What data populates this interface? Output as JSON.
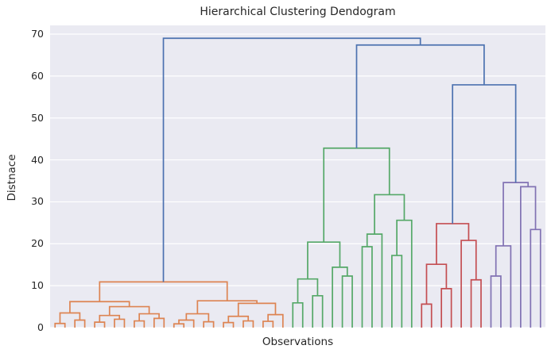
{
  "colors": {
    "figure_background": "#ffffff",
    "axes_background": "#eaeaf2",
    "grid": "#ffffff",
    "text": "#262626",
    "blue": "#4c72b0",
    "orange": "#dd8452",
    "green": "#55a868",
    "red": "#c44e52",
    "purple": "#8172b3"
  },
  "chart_data": {
    "type": "dendrogram",
    "title": "Hierarchical Clustering Dendogram",
    "xlabel": "Observations",
    "ylabel": "Distnace",
    "ylim": [
      0,
      72
    ],
    "yticks": [
      0,
      10,
      20,
      30,
      40,
      50,
      60,
      70
    ],
    "grid": "horizontal-white-lines",
    "legend": "none",
    "x_tick_labels": "none",
    "leaf_count": 50,
    "link_color_above_threshold": "#4c72b0",
    "top_link_heights": [
      69.0,
      67.4,
      57.9
    ],
    "clusters": [
      {
        "name": "cluster-orange",
        "color": "#dd8452",
        "leaf_count": 24,
        "root_height": 10.9
      },
      {
        "name": "cluster-green",
        "color": "#55a868",
        "leaf_count": 13,
        "root_height": 42.8
      },
      {
        "name": "cluster-red",
        "color": "#c44e52",
        "leaf_count": 7,
        "root_height": 24.8
      },
      {
        "name": "cluster-purple",
        "color": "#8172b3",
        "leaf_count": 6,
        "root_height": 34.6
      }
    ],
    "tree_format": "node = [merge_height, child_a, child_b, optional_color]; leaf = 0; colors inherited by descendants",
    "tree": [
      69.0,
      [
        10.9,
        [
          6.2,
          [
            3.5,
            [
              1.0,
              0,
              0
            ],
            [
              1.8,
              0,
              0
            ]
          ],
          [
            5.0,
            [
              2.9,
              [
                1.3,
                0,
                0
              ],
              [
                2.0,
                0,
                0
              ]
            ],
            [
              3.3,
              [
                1.6,
                0,
                0
              ],
              [
                2.2,
                0,
                0
              ]
            ]
          ]
        ],
        [
          6.4,
          [
            3.3,
            [
              1.8,
              [
                0.9,
                0,
                0
              ],
              0
            ],
            [
              1.4,
              0,
              0
            ]
          ],
          [
            5.8,
            [
              2.7,
              [
                1.2,
                0,
                0
              ],
              [
                1.6,
                0,
                0
              ]
            ],
            [
              3.1,
              [
                1.5,
                0,
                0
              ],
              0
            ]
          ]
        ],
        "#dd8452"
      ],
      [
        67.4,
        [
          42.8,
          [
            20.4,
            [
              11.6,
              [
                5.9,
                0,
                0
              ],
              [
                7.6,
                0,
                0
              ]
            ],
            [
              14.4,
              0,
              [
                12.3,
                0,
                0
              ]
            ]
          ],
          [
            31.7,
            [
              22.3,
              [
                19.3,
                0,
                0
              ],
              0
            ],
            [
              25.6,
              [
                17.2,
                0,
                0
              ],
              0
            ]
          ],
          "#55a868"
        ],
        [
          57.9,
          [
            24.8,
            [
              15.1,
              [
                5.6,
                0,
                0
              ],
              [
                9.3,
                0,
                0
              ]
            ],
            [
              20.8,
              0,
              [
                11.4,
                0,
                0
              ]
            ],
            "#c44e52"
          ],
          [
            34.6,
            [
              19.5,
              [
                12.3,
                0,
                0
              ],
              0
            ],
            [
              33.6,
              0,
              [
                23.4,
                0,
                0
              ]
            ],
            "#8172b3"
          ]
        ]
      ]
    ]
  }
}
